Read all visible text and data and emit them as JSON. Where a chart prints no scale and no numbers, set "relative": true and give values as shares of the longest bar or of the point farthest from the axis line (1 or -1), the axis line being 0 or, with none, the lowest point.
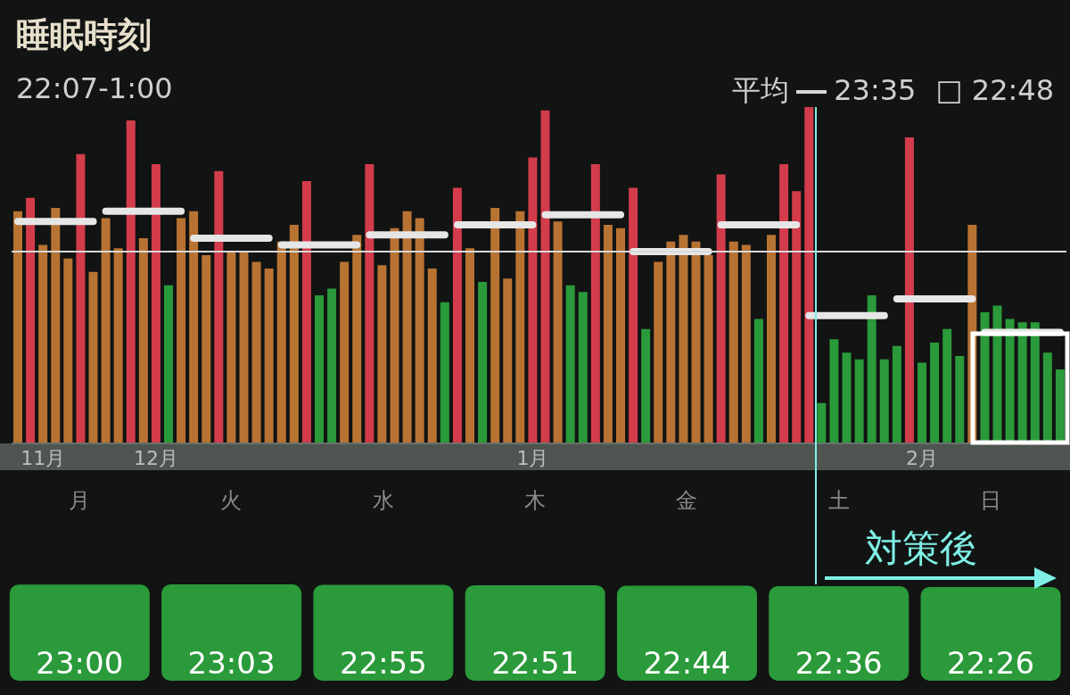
{
  "chart_data": [
    {
      "type": "bar",
      "title": "睡眠時刻",
      "subtitle": "22:07-1:00",
      "relative": true,
      "categories": [
        null,
        null,
        "11月",
        null,
        null,
        null,
        null,
        null,
        null,
        null,
        null,
        "12月",
        null,
        null,
        null,
        null,
        null,
        null,
        null,
        null,
        null,
        null,
        null,
        null,
        null,
        null,
        null,
        null,
        null,
        null,
        null,
        null,
        null,
        null,
        null,
        null,
        null,
        null,
        null,
        null,
        null,
        "1月",
        null,
        null,
        null,
        null,
        null,
        null,
        null,
        null,
        null,
        null,
        null,
        null,
        null,
        null,
        null,
        null,
        null,
        null,
        null,
        null,
        null,
        null,
        null,
        null,
        null,
        null,
        null,
        null,
        null,
        null,
        "2月",
        null,
        null,
        null,
        null,
        null,
        null,
        null,
        null,
        null,
        null,
        null
      ],
      "series": [
        {
          "type": "bar",
          "values": [
            0.69,
            0.73,
            0.59,
            0.7,
            0.55,
            0.86,
            0.51,
            0.67,
            0.58,
            0.96,
            0.61,
            0.83,
            0.47,
            0.67,
            0.69,
            0.56,
            0.81,
            0.57,
            0.57,
            0.54,
            0.52,
            0.6,
            0.65,
            0.78,
            0.44,
            0.46,
            0.54,
            0.62,
            0.83,
            0.53,
            0.64,
            0.69,
            0.67,
            0.52,
            0.42,
            0.76,
            0.58,
            0.48,
            0.7,
            0.49,
            0.69,
            0.85,
            0.99,
            0.66,
            0.47,
            0.45,
            0.83,
            0.65,
            0.64,
            0.76,
            0.34,
            0.54,
            0.6,
            0.62,
            0.6,
            0.56,
            0.8,
            0.6,
            0.59,
            0.37,
            0.62,
            0.83,
            0.75,
            1,
            0.12,
            0.31,
            0.27,
            0.25,
            0.44,
            0.25,
            0.29,
            0.91,
            0.24,
            0.3,
            0.34,
            0.26,
            0.65,
            0.39,
            0.41,
            0.37,
            0.36,
            0.36,
            0.27,
            0.22
          ],
          "colors": [
            "#b87333",
            "#d23c4b",
            "#b87333",
            "#b87333",
            "#b87333",
            "#d23c4b",
            "#b87333",
            "#b87333",
            "#b87333",
            "#d23c4b",
            "#b87333",
            "#d23c4b",
            "#2a9a3a",
            "#b87333",
            "#b87333",
            "#b87333",
            "#d23c4b",
            "#b87333",
            "#b87333",
            "#b87333",
            "#b87333",
            "#b87333",
            "#b87333",
            "#d23c4b",
            "#2a9a3a",
            "#2a9a3a",
            "#b87333",
            "#b87333",
            "#d23c4b",
            "#b87333",
            "#b87333",
            "#b87333",
            "#b87333",
            "#b87333",
            "#2a9a3a",
            "#d23c4b",
            "#b87333",
            "#2a9a3a",
            "#b87333",
            "#b87333",
            "#b87333",
            "#d23c4b",
            "#d23c4b",
            "#b87333",
            "#2a9a3a",
            "#2a9a3a",
            "#d23c4b",
            "#b87333",
            "#b87333",
            "#d23c4b",
            "#2a9a3a",
            "#b87333",
            "#b87333",
            "#b87333",
            "#b87333",
            "#b87333",
            "#d23c4b",
            "#b87333",
            "#b87333",
            "#2a9a3a",
            "#b87333",
            "#d23c4b",
            "#d23c4b",
            "#d23c4b",
            "#2a9a3a",
            "#2a9a3a",
            "#2a9a3a",
            "#2a9a3a",
            "#2a9a3a",
            "#2a9a3a",
            "#2a9a3a",
            "#d23c4b",
            "#2a9a3a",
            "#2a9a3a",
            "#2a9a3a",
            "#2a9a3a",
            "#b87333",
            "#2a9a3a",
            "#2a9a3a",
            "#2a9a3a",
            "#2a9a3a",
            "#2a9a3a",
            "#2a9a3a",
            "#2a9a3a"
          ]
        },
        {
          "type": "line",
          "color": "#e6e6e6",
          "values": [
            0.66,
            0.66,
            0.66,
            0.66,
            0.66,
            0.66,
            0.66,
            null,
            null,
            null,
            null,
            null,
            null,
            null,
            null,
            null,
            null,
            null,
            null,
            null,
            null,
            null,
            null,
            null,
            null,
            null,
            null,
            null,
            null,
            null,
            null,
            null,
            null,
            null,
            null,
            null,
            null,
            null,
            null,
            null,
            null,
            null,
            null,
            null,
            null,
            null,
            null,
            null,
            null,
            null,
            null,
            null,
            null,
            null,
            null,
            null,
            null,
            null,
            null,
            null,
            null,
            null,
            null,
            null,
            null,
            null,
            null,
            null,
            null,
            null,
            null,
            null,
            null,
            null,
            null,
            null,
            null,
            null,
            null,
            null,
            null,
            null,
            null,
            null
          ]
        },
        {
          "type": "line",
          "color": "#e6e6e6",
          "values": [
            null,
            null,
            null,
            null,
            null,
            null,
            null,
            0.69,
            0.69,
            0.69,
            0.69,
            0.69,
            0.69,
            0.69,
            null,
            null,
            null,
            null,
            null,
            null,
            null,
            null,
            null,
            null,
            null,
            null,
            null,
            null,
            null,
            null,
            null,
            null,
            null,
            null,
            null,
            null,
            null,
            null,
            null,
            null,
            null,
            null,
            null,
            null,
            null,
            null,
            null,
            null,
            null,
            null,
            null,
            null,
            null,
            null,
            null,
            null,
            null,
            null,
            null,
            null,
            null,
            null,
            null,
            null,
            null,
            null,
            null,
            null,
            null,
            null,
            null,
            null,
            null,
            null,
            null,
            null,
            null,
            null,
            null,
            null,
            null,
            null,
            null,
            null
          ]
        },
        {
          "type": "line",
          "color": "#e6e6e6",
          "values": [
            null,
            null,
            null,
            null,
            null,
            null,
            null,
            null,
            null,
            null,
            null,
            null,
            null,
            null,
            0.61,
            0.61,
            0.61,
            0.61,
            0.61,
            0.61,
            0.61,
            null,
            null,
            null,
            null,
            null,
            null,
            null,
            null,
            null,
            null,
            null,
            null,
            null,
            null,
            null,
            null,
            null,
            null,
            null,
            null,
            null,
            null,
            null,
            null,
            null,
            null,
            null,
            null,
            null,
            null,
            null,
            null,
            null,
            null,
            null,
            null,
            null,
            null,
            null,
            null,
            null,
            null,
            null,
            null,
            null,
            null,
            null,
            null,
            null,
            null,
            null,
            null,
            null,
            null,
            null,
            null,
            null,
            null,
            null,
            null,
            null,
            null,
            null
          ]
        },
        {
          "type": "line",
          "color": "#e6e6e6",
          "values": [
            null,
            null,
            null,
            null,
            null,
            null,
            null,
            null,
            null,
            null,
            null,
            null,
            null,
            null,
            null,
            null,
            null,
            null,
            null,
            null,
            null,
            0.59,
            0.59,
            0.59,
            0.59,
            0.59,
            0.59,
            0.59,
            null,
            null,
            null,
            null,
            null,
            null,
            null,
            null,
            null,
            null,
            null,
            null,
            null,
            null,
            null,
            null,
            null,
            null,
            null,
            null,
            null,
            null,
            null,
            null,
            null,
            null,
            null,
            null,
            null,
            null,
            null,
            null,
            null,
            null,
            null,
            null,
            null,
            null,
            null,
            null,
            null,
            null,
            null,
            null,
            null,
            null,
            null,
            null,
            null,
            null,
            null,
            null,
            null,
            null,
            null,
            null
          ]
        },
        {
          "type": "line",
          "color": "#e6e6e6",
          "values": [
            null,
            null,
            null,
            null,
            null,
            null,
            null,
            null,
            null,
            null,
            null,
            null,
            null,
            null,
            null,
            null,
            null,
            null,
            null,
            null,
            null,
            null,
            null,
            null,
            null,
            null,
            null,
            null,
            0.62,
            0.62,
            0.62,
            0.62,
            0.62,
            0.62,
            0.62,
            null,
            null,
            null,
            null,
            null,
            null,
            null,
            null,
            null,
            null,
            null,
            null,
            null,
            null,
            null,
            null,
            null,
            null,
            null,
            null,
            null,
            null,
            null,
            null,
            null,
            null,
            null,
            null,
            null,
            null,
            null,
            null,
            null,
            null,
            null,
            null,
            null,
            null,
            null,
            null,
            null,
            null,
            null,
            null,
            null,
            null,
            null,
            null,
            null
          ]
        },
        {
          "type": "line",
          "color": "#e6e6e6",
          "values": [
            null,
            null,
            null,
            null,
            null,
            null,
            null,
            null,
            null,
            null,
            null,
            null,
            null,
            null,
            null,
            null,
            null,
            null,
            null,
            null,
            null,
            null,
            null,
            null,
            null,
            null,
            null,
            null,
            null,
            null,
            null,
            null,
            null,
            null,
            null,
            0.65,
            0.65,
            0.65,
            0.65,
            0.65,
            0.65,
            0.65,
            null,
            null,
            null,
            null,
            null,
            null,
            null,
            null,
            null,
            null,
            null,
            null,
            null,
            null,
            null,
            null,
            null,
            null,
            null,
            null,
            null,
            null,
            null,
            null,
            null,
            null,
            null,
            null,
            null,
            null,
            null,
            null,
            null,
            null,
            null,
            null,
            null,
            null,
            null,
            null,
            null,
            null
          ]
        },
        {
          "type": "line",
          "color": "#e6e6e6",
          "values": [
            null,
            null,
            null,
            null,
            null,
            null,
            null,
            null,
            null,
            null,
            null,
            null,
            null,
            null,
            null,
            null,
            null,
            null,
            null,
            null,
            null,
            null,
            null,
            null,
            null,
            null,
            null,
            null,
            null,
            null,
            null,
            null,
            null,
            null,
            null,
            null,
            null,
            null,
            null,
            null,
            null,
            null,
            0.68,
            0.68,
            0.68,
            0.68,
            0.68,
            0.68,
            0.68,
            null,
            null,
            null,
            null,
            null,
            null,
            null,
            null,
            null,
            null,
            null,
            null,
            null,
            null,
            null,
            null,
            null,
            null,
            null,
            null,
            null,
            null,
            null,
            null,
            null,
            null,
            null,
            null,
            null,
            null,
            null,
            null,
            null,
            null,
            null
          ]
        },
        {
          "type": "line",
          "color": "#e6e6e6",
          "values": [
            null,
            null,
            null,
            null,
            null,
            null,
            null,
            null,
            null,
            null,
            null,
            null,
            null,
            null,
            null,
            null,
            null,
            null,
            null,
            null,
            null,
            null,
            null,
            null,
            null,
            null,
            null,
            null,
            null,
            null,
            null,
            null,
            null,
            null,
            null,
            null,
            null,
            null,
            null,
            null,
            null,
            null,
            null,
            null,
            null,
            null,
            null,
            null,
            null,
            0.57,
            0.57,
            0.57,
            0.57,
            0.57,
            0.57,
            0.57,
            null,
            null,
            null,
            null,
            null,
            null,
            null,
            null,
            null,
            null,
            null,
            null,
            null,
            null,
            null,
            null,
            null,
            null,
            null,
            null,
            null,
            null,
            null,
            null,
            null,
            null,
            null,
            null
          ]
        },
        {
          "type": "line",
          "color": "#e6e6e6",
          "values": [
            null,
            null,
            null,
            null,
            null,
            null,
            null,
            null,
            null,
            null,
            null,
            null,
            null,
            null,
            null,
            null,
            null,
            null,
            null,
            null,
            null,
            null,
            null,
            null,
            null,
            null,
            null,
            null,
            null,
            null,
            null,
            null,
            null,
            null,
            null,
            null,
            null,
            null,
            null,
            null,
            null,
            null,
            null,
            null,
            null,
            null,
            null,
            null,
            null,
            null,
            null,
            null,
            null,
            null,
            null,
            null,
            0.65,
            0.65,
            0.65,
            0.65,
            0.65,
            0.65,
            0.65,
            null,
            null,
            null,
            null,
            null,
            null,
            null,
            null,
            null,
            null,
            null,
            null,
            null,
            null,
            null,
            null,
            null,
            null,
            null,
            null,
            null
          ]
        },
        {
          "type": "line",
          "color": "#e6e6e6",
          "values": [
            null,
            null,
            null,
            null,
            null,
            null,
            null,
            null,
            null,
            null,
            null,
            null,
            null,
            null,
            null,
            null,
            null,
            null,
            null,
            null,
            null,
            null,
            null,
            null,
            null,
            null,
            null,
            null,
            null,
            null,
            null,
            null,
            null,
            null,
            null,
            null,
            null,
            null,
            null,
            null,
            null,
            null,
            null,
            null,
            null,
            null,
            null,
            null,
            null,
            null,
            null,
            null,
            null,
            null,
            null,
            null,
            null,
            null,
            null,
            null,
            null,
            null,
            null,
            0.38,
            0.38,
            0.38,
            0.38,
            0.38,
            0.38,
            0.38,
            null,
            null,
            null,
            null,
            null,
            null,
            null,
            null,
            null,
            null,
            null,
            null,
            null,
            null
          ]
        },
        {
          "type": "line",
          "color": "#e6e6e6",
          "values": [
            null,
            null,
            null,
            null,
            null,
            null,
            null,
            null,
            null,
            null,
            null,
            null,
            null,
            null,
            null,
            null,
            null,
            null,
            null,
            null,
            null,
            null,
            null,
            null,
            null,
            null,
            null,
            null,
            null,
            null,
            null,
            null,
            null,
            null,
            null,
            null,
            null,
            null,
            null,
            null,
            null,
            null,
            null,
            null,
            null,
            null,
            null,
            null,
            null,
            null,
            null,
            null,
            null,
            null,
            null,
            null,
            null,
            null,
            null,
            null,
            null,
            null,
            null,
            null,
            null,
            null,
            null,
            null,
            null,
            null,
            0.43,
            0.43,
            0.43,
            0.43,
            0.43,
            0.43,
            0.43,
            null,
            null,
            null,
            null,
            null,
            null,
            null
          ]
        },
        {
          "type": "line",
          "color": "#e6e6e6",
          "values": [
            null,
            null,
            null,
            null,
            null,
            null,
            null,
            null,
            null,
            null,
            null,
            null,
            null,
            null,
            null,
            null,
            null,
            null,
            null,
            null,
            null,
            null,
            null,
            null,
            null,
            null,
            null,
            null,
            null,
            null,
            null,
            null,
            null,
            null,
            null,
            null,
            null,
            null,
            null,
            null,
            null,
            null,
            null,
            null,
            null,
            null,
            null,
            null,
            null,
            null,
            null,
            null,
            null,
            null,
            null,
            null,
            null,
            null,
            null,
            null,
            null,
            null,
            null,
            null,
            null,
            null,
            null,
            null,
            null,
            null,
            null,
            null,
            null,
            null,
            null,
            null,
            null,
            0.33,
            0.33,
            0.33,
            0.33,
            0.33,
            0.33,
            0.33
          ]
        }
      ],
      "ref_lines": [
        {
          "axis": "y",
          "value": 0.57,
          "label": "平均",
          "color": "#d8d8d8"
        }
      ],
      "annotations": [
        "23:35",
        "□ 22:48",
        "対策後"
      ]
    },
    {
      "type": "bar",
      "categories": [
        "月",
        "火",
        "水",
        "木",
        "金",
        "土",
        "日"
      ],
      "values": [
        23,
        23.05,
        22.917,
        22.85,
        22.733,
        22.6,
        22.433
      ],
      "value_labels": [
        "23:00",
        "23:03",
        "22:55",
        "22:51",
        "22:44",
        "22:36",
        "22:26"
      ],
      "color": "#2a9a3a"
    }
  ]
}
